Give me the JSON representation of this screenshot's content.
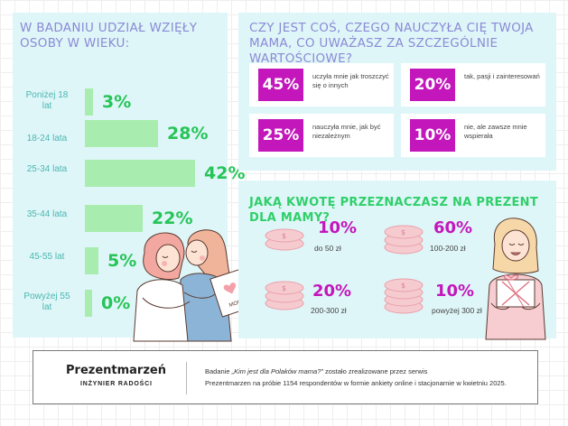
{
  "age_panel": {
    "title": "W badaniu udział wzięły osoby w wieku:",
    "rows": [
      {
        "label": "Poniżej 18 lat",
        "value": "3%",
        "fraction": 0.03
      },
      {
        "label": "18-24 lata",
        "value": "28%",
        "fraction": 0.28
      },
      {
        "label": "25-34 lata",
        "value": "42%",
        "fraction": 0.42
      },
      {
        "label": "35-44 lata",
        "value": "22%",
        "fraction": 0.22
      },
      {
        "label": "45-55 lat",
        "value": "5%",
        "fraction": 0.05
      },
      {
        "label": "Powyżej 55 lat",
        "value": "0%",
        "fraction": 0.0
      }
    ]
  },
  "lesson_panel": {
    "title": "Czy jest coś, czego nauczyła cię Twoja mama, co uważasz za szczególnie wartościowe?",
    "cards": [
      {
        "value": "45%",
        "text": "uczyła mnie jak troszczyć się o innych"
      },
      {
        "value": "20%",
        "text": "tak, pasji i zainteresowań"
      },
      {
        "value": "25%",
        "text": "nauczyła mnie, jak być niezależnym"
      },
      {
        "value": "10%",
        "text": "nie, ale zawsze mnie wspierała"
      }
    ]
  },
  "gift_panel": {
    "title": "Jaką kwotę przeznaczasz na prezent dla mamy?",
    "items": [
      {
        "value": "10%",
        "label": "do 50 zł"
      },
      {
        "value": "60%",
        "label": "100-200 zł"
      },
      {
        "value": "20%",
        "label": "200-300 zł"
      },
      {
        "value": "10%",
        "label": "powyżej 300 zł"
      }
    ]
  },
  "illustration": {
    "card_text": "MOM"
  },
  "footer": {
    "brand": "Prezentmarzeń",
    "brand_sub": "INŻYNIER RADOŚCI",
    "line1_pre": "Badanie ",
    "line1_survey": "„Kim jest dla Polaków mama?”",
    "line1_post": " zostało zrealizowane przez serwis",
    "line2": "Prezentmarzen na próbie 1154 respondentów w formie ankiety online i stacjonarnie w kwietniu 2025."
  },
  "colors": {
    "panel_bg": "#dff6f8",
    "title_purple": "#8a8ad6",
    "accent_green": "#27c458",
    "bar_green": "#a8ecb0",
    "magenta": "#c317bc",
    "age_label_teal": "#4bb6b1",
    "coin_pink": "#f6cbd0"
  }
}
